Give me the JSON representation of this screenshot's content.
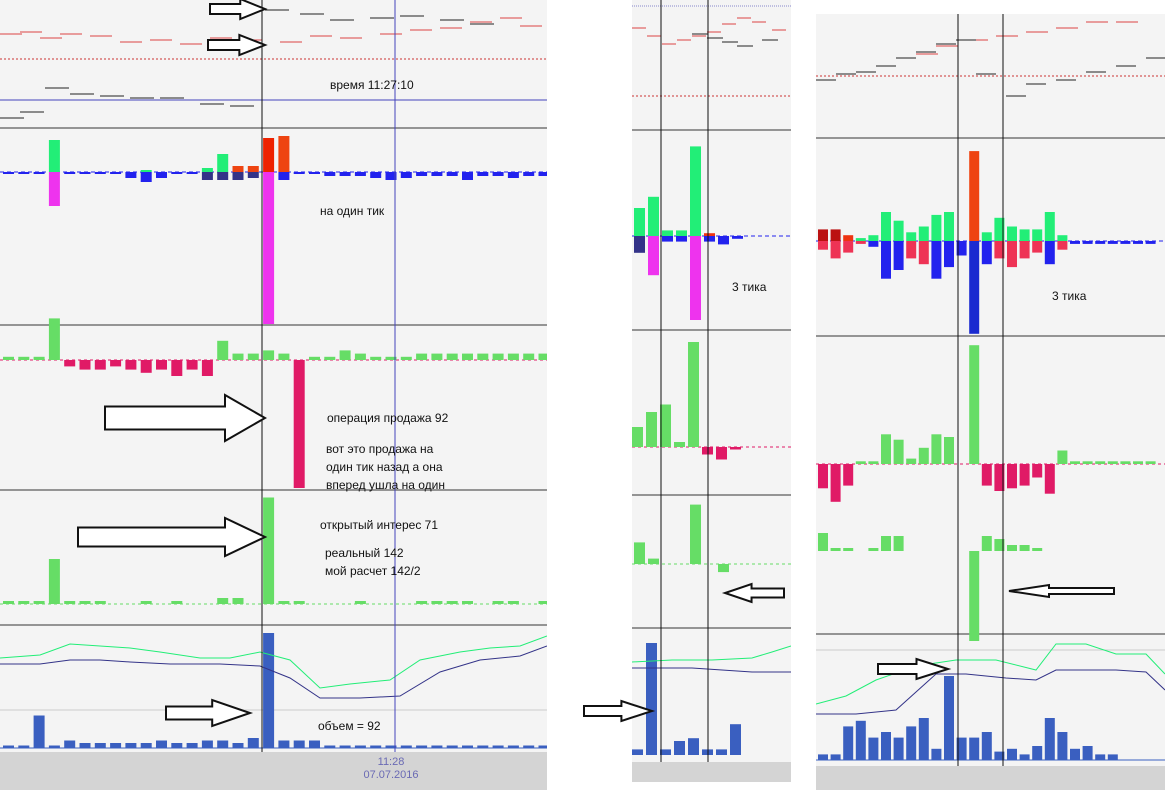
{
  "chart_data": [
    {
      "type": "bar",
      "panels": [
        "price",
        "trades",
        "operations",
        "open-interest",
        "volume"
      ],
      "annotations": {
        "time": "время 11:27:10",
        "tick": "на один тик",
        "sell_op": "операция продажа 92",
        "sell_note1": "вот это продажа на",
        "sell_note2": "один тик назад а она",
        "sell_note3": "вперед ушла на один",
        "oi": "открытый интерес 71",
        "real": "реальный 142",
        "calc": "мой расчет 142/2",
        "volume": "объем = 92"
      },
      "x_tick_labels": [
        "11:28",
        "07.07.2016"
      ],
      "trades_up": [
        0,
        0,
        0,
        32,
        0,
        0,
        0,
        0,
        0,
        2,
        0,
        0,
        0,
        4,
        18,
        6,
        6,
        34,
        36,
        0,
        0,
        0,
        0,
        0,
        0,
        0,
        0,
        0,
        0,
        0,
        0,
        0,
        0,
        0,
        0,
        0
      ],
      "trades_down": [
        2,
        2,
        2,
        34,
        2,
        2,
        2,
        2,
        6,
        10,
        6,
        2,
        2,
        8,
        8,
        8,
        6,
        152,
        8,
        2,
        2,
        4,
        4,
        4,
        6,
        8,
        6,
        4,
        4,
        4,
        8,
        4,
        4,
        6,
        4,
        4
      ],
      "operations": [
        2,
        2,
        2,
        26,
        4,
        6,
        6,
        4,
        6,
        8,
        6,
        10,
        6,
        10,
        12,
        4,
        4,
        6,
        4,
        80,
        2,
        2,
        6,
        4,
        2,
        2,
        2,
        4,
        4,
        4,
        4,
        4,
        4,
        4,
        4,
        4
      ],
      "open_interest": [
        2,
        2,
        2,
        30,
        2,
        2,
        2,
        0,
        0,
        2,
        0,
        2,
        0,
        0,
        4,
        4,
        0,
        71,
        2,
        2,
        0,
        0,
        0,
        2,
        0,
        0,
        0,
        2,
        2,
        2,
        2,
        0,
        2,
        2,
        0,
        2
      ],
      "volume": [
        2,
        2,
        26,
        2,
        6,
        4,
        4,
        4,
        4,
        4,
        6,
        4,
        4,
        6,
        6,
        4,
        8,
        92,
        6,
        6,
        6,
        2,
        2,
        2,
        2,
        2,
        2,
        2,
        2,
        2,
        2,
        2,
        2,
        2,
        2,
        2
      ]
    },
    {
      "type": "bar",
      "annotations": {
        "tick": "3 тика"
      },
      "trades_up": [
        20,
        28,
        4,
        4,
        64,
        2,
        0,
        0
      ],
      "trades_down": [
        12,
        28,
        4,
        4,
        60,
        4,
        6,
        2
      ],
      "operations": [
        16,
        28,
        34,
        4,
        84,
        6,
        10,
        2
      ],
      "open_interest": [
        16,
        4,
        0,
        0,
        44,
        0,
        6,
        0
      ],
      "volume": [
        4,
        80,
        4,
        10,
        12,
        4,
        4,
        22
      ]
    },
    {
      "type": "bar",
      "annotations": {
        "tick": "3 тика"
      },
      "trades_up": [
        8,
        8,
        4,
        2,
        4,
        20,
        14,
        6,
        10,
        18,
        20,
        0,
        62,
        6,
        16,
        10,
        8,
        8,
        20,
        4,
        0,
        0,
        0,
        0,
        0,
        0,
        0
      ],
      "trades_down": [
        6,
        12,
        8,
        2,
        4,
        26,
        20,
        12,
        16,
        26,
        18,
        10,
        64,
        16,
        12,
        18,
        12,
        8,
        16,
        6,
        2,
        2,
        2,
        2,
        2,
        2,
        2
      ],
      "operations": [
        18,
        28,
        16,
        2,
        2,
        22,
        18,
        4,
        12,
        22,
        20,
        0,
        88,
        16,
        20,
        18,
        16,
        10,
        22,
        10,
        2,
        2,
        2,
        2,
        2,
        2,
        2
      ],
      "open_interest": [
        12,
        2,
        2,
        0,
        2,
        10,
        10,
        0,
        0,
        0,
        0,
        0,
        60,
        10,
        8,
        4,
        4,
        2,
        0,
        0,
        0,
        0,
        0,
        0,
        0,
        0,
        0
      ],
      "volume": [
        4,
        4,
        24,
        28,
        16,
        20,
        16,
        24,
        30,
        8,
        60,
        16,
        16,
        20,
        6,
        8,
        4,
        10,
        30,
        20,
        8,
        10,
        4,
        4,
        0,
        0,
        0
      ]
    }
  ],
  "colors": {
    "green": "#22ee77",
    "magenta": "#ee33ee",
    "red": "#ee3311",
    "blue": "#2222ee",
    "navy": "#333388",
    "crimson": "#e01a66",
    "lightgreen": "#66dd66",
    "volume_blue": "#3a5fc0",
    "accent_line": "#4444bb"
  }
}
